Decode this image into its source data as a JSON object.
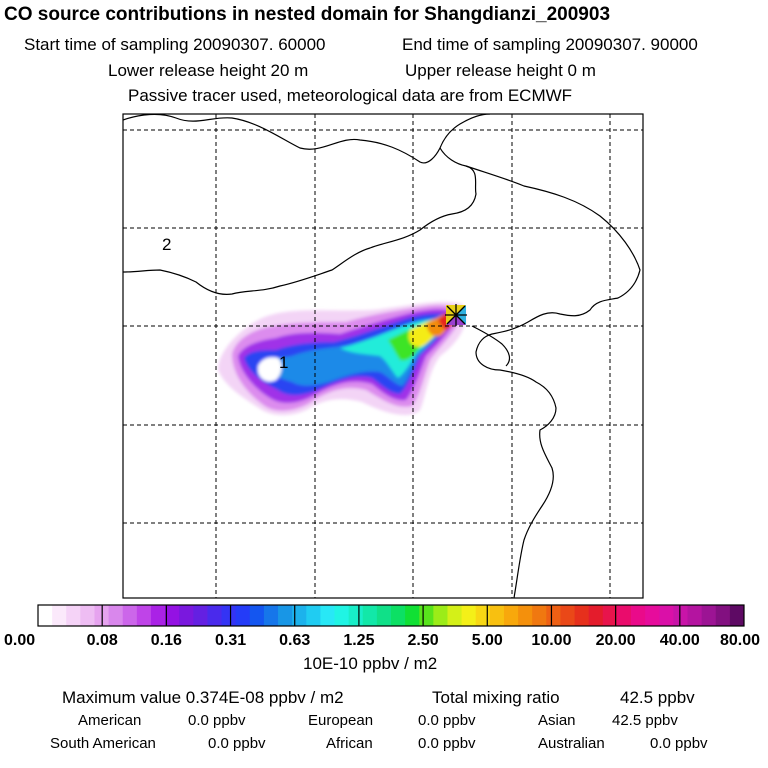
{
  "header": {
    "title": "CO  source contributions in nested domain for Shangdianzi_200903",
    "start_label": "Start time of sampling 20090307. 60000",
    "end_label": "End time of sampling 20090307. 90000",
    "lower_label": "Lower release height   20 m",
    "upper_label": "Upper release height    0 m",
    "tracer_label": "Passive tracer used, meteorological data are from ECMWF"
  },
  "chart_data": {
    "type": "heatmap",
    "title": "CO  source contributions in nested domain for Shangdianzi_200903",
    "region_labels": [
      "2",
      "1"
    ],
    "receptor_marker": "Shangdianzi",
    "colorbar": {
      "unit": "10E-10 ppbv / m2",
      "ticks": [
        "0.00",
        "0.08",
        "0.16",
        "0.31",
        "0.63",
        "1.25",
        "2.50",
        "5.00",
        "10.00",
        "20.00",
        "40.00",
        "80.00"
      ],
      "colors": [
        "#ffffff",
        "#fbe9fb",
        "#f5d3f7",
        "#eebdf3",
        "#e6a3ef",
        "#d987ec",
        "#cc66ea",
        "#bf44e8",
        "#aa22e6",
        "#9412e3",
        "#7a18de",
        "#6420e2",
        "#4a2aec",
        "#3434f4",
        "#243cf8",
        "#1456f0",
        "#1676ea",
        "#1896e6",
        "#1cb2ec",
        "#20ccf2",
        "#28e8f6",
        "#20f4e4",
        "#18eec8",
        "#12e8a8",
        "#10e088",
        "#0ce064",
        "#10e034",
        "#58e41c",
        "#9cec18",
        "#d4f018",
        "#f4f018",
        "#f8d814",
        "#f8c010",
        "#f8a80c",
        "#f4900c",
        "#f07810",
        "#ee6014",
        "#ea4818",
        "#e6301c",
        "#e41c2c",
        "#e8144c",
        "#ea0c6c",
        "#ea0a8a",
        "#e60c9c",
        "#da10a8",
        "#c814a8",
        "#b414a0",
        "#9c1494",
        "#821080",
        "#5e0a64"
      ]
    }
  },
  "footer": {
    "max_label": "Maximum value  0.374E-08 ppbv / m2",
    "total_label": "Total mixing ratio",
    "total_value": "42.5 ppbv",
    "american_label": "American",
    "american_value": "0.0 ppbv",
    "european_label": "European",
    "european_value": "0.0 ppbv",
    "asian_label": "Asian",
    "asian_value": "42.5 ppbv",
    "south_american_label": "South American",
    "south_american_value": "0.0 ppbv",
    "african_label": "African",
    "african_value": "0.0 ppbv",
    "australian_label": "Australian",
    "australian_value": "0.0 ppbv"
  }
}
